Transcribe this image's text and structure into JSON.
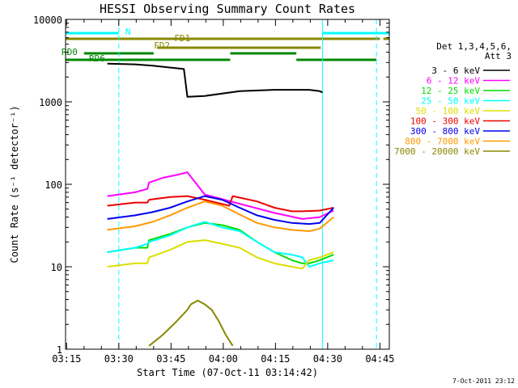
{
  "chart_data": {
    "type": "line",
    "title": "HESSI Observing Summary Count Rates",
    "xlabel": "Start Time (07-Oct-11 03:14:42)",
    "ylabel": "Count Rate (s⁻¹ detector⁻¹)",
    "x_unit": "minutes after 03:14:42",
    "xlim": [
      0,
      93
    ],
    "ylim": [
      1,
      10000
    ],
    "y_scale": "log",
    "x_tick_labels": [
      "03:15",
      "03:30",
      "03:45",
      "04:00",
      "04:15",
      "04:30",
      "04:45"
    ],
    "x_tick_values": [
      0.3,
      15.3,
      30.3,
      45.3,
      60.3,
      75.3,
      90.3
    ],
    "y_tick_labels": [
      "1",
      "10",
      "100",
      "1000",
      "10000"
    ],
    "y_tick_values": [
      1,
      10,
      100,
      1000,
      10000
    ],
    "legend": {
      "position": "right",
      "header": [
        "Det 1,3,4,5,6,",
        "Att 3"
      ],
      "entries": [
        {
          "label": "3 - 6 keV",
          "color": "#000000"
        },
        {
          "label": "6 - 12 keV",
          "color": "#ff00ff"
        },
        {
          "label": "12 - 25 keV",
          "color": "#00dd00"
        },
        {
          "label": "25 - 50 keV",
          "color": "#00ffff"
        },
        {
          "label": "50 - 100 keV",
          "color": "#dddd00"
        },
        {
          "label": "100 - 300 keV",
          "color": "#ee0000"
        },
        {
          "label": "300 - 800 keV",
          "color": "#0000ee"
        },
        {
          "label": "800 - 7000 keV",
          "color": "#ff9900"
        },
        {
          "label": "7000 - 20000 keV",
          "color": "#888800"
        }
      ]
    },
    "series": [
      {
        "color": "#000000",
        "x": [
          12,
          20,
          25,
          34,
          35,
          40,
          50,
          60,
          70,
          73,
          73.8
        ],
        "y": [
          2900,
          2850,
          2750,
          2500,
          1150,
          1180,
          1350,
          1400,
          1400,
          1350,
          1300
        ]
      },
      {
        "color": "#ff00ff",
        "x": [
          12,
          20,
          23.5,
          24,
          28,
          32,
          35,
          40,
          50,
          60,
          68,
          73,
          77
        ],
        "y": [
          72,
          80,
          88,
          105,
          120,
          130,
          140,
          75,
          58,
          45,
          38,
          40,
          48
        ]
      },
      {
        "color": "#00dd00",
        "x": [
          12,
          20,
          23.5,
          24,
          30,
          35,
          40,
          45,
          50,
          55,
          60,
          65,
          68,
          70,
          73,
          77
        ],
        "y": [
          15,
          17,
          17,
          21,
          25,
          30,
          34,
          32,
          28,
          20,
          15,
          12,
          11,
          11,
          12,
          14
        ]
      },
      {
        "color": "#00ffff",
        "x": [
          12,
          20,
          23.5,
          24,
          30,
          35,
          40,
          45,
          50,
          55,
          60,
          65,
          68,
          70,
          73,
          77
        ],
        "y": [
          15,
          17,
          19,
          20,
          24,
          30,
          35,
          30,
          27,
          20,
          15,
          14,
          13,
          10,
          11,
          12
        ]
      },
      {
        "color": "#dddd00",
        "x": [
          12,
          20,
          23.5,
          24,
          30,
          35,
          40,
          45,
          50,
          55,
          60,
          65,
          68,
          70,
          73,
          77
        ],
        "y": [
          10,
          11,
          11,
          13,
          16,
          20,
          21,
          19,
          17,
          13,
          11,
          10,
          9.5,
          12,
          13,
          15
        ]
      },
      {
        "color": "#ee0000",
        "x": [
          12,
          20,
          23.5,
          24,
          30,
          35,
          40,
          47,
          48,
          55,
          60,
          65,
          68,
          73,
          77
        ],
        "y": [
          55,
          60,
          60,
          65,
          70,
          72,
          65,
          55,
          72,
          62,
          52,
          47,
          47,
          48,
          52
        ]
      },
      {
        "color": "#0000ee",
        "x": [
          12,
          20,
          25,
          30,
          35,
          40,
          45,
          50,
          55,
          60,
          65,
          70,
          73,
          77
        ],
        "y": [
          38,
          42,
          46,
          52,
          62,
          72,
          65,
          52,
          42,
          37,
          34,
          33,
          34,
          52
        ]
      },
      {
        "color": "#ff9900",
        "x": [
          12,
          20,
          25,
          30,
          35,
          40,
          45,
          50,
          55,
          60,
          65,
          70,
          73,
          77
        ],
        "y": [
          28,
          31,
          35,
          42,
          52,
          62,
          55,
          43,
          34,
          30,
          28,
          27,
          29,
          40
        ]
      },
      {
        "color": "#888800",
        "x": [
          24,
          28,
          32,
          35,
          36,
          38,
          40,
          42,
          44,
          46,
          48
        ],
        "y": [
          1.1,
          1.5,
          2.2,
          3,
          3.5,
          3.9,
          3.5,
          3,
          2.2,
          1.5,
          1.1
        ]
      }
    ],
    "flag_bars": [
      {
        "label": "N",
        "color": "#00ffff",
        "segments": [
          [
            0,
            15.3
          ],
          [
            73.8,
            93
          ]
        ]
      },
      {
        "label": "FD1",
        "color": "#888800",
        "segments": [
          [
            0,
            90.3
          ],
          [
            91.3,
            93
          ]
        ]
      },
      {
        "label": "FD2",
        "color": "#888800",
        "segments": [
          [
            26.3,
            73.3
          ]
        ]
      },
      {
        "label": "RD0",
        "color": "#008800",
        "segments": [
          [
            5.3,
            25.3
          ],
          [
            47.3,
            66.3
          ]
        ]
      },
      {
        "label": "RD6",
        "color": "#008800",
        "segments": [
          [
            0,
            25.3
          ],
          [
            25.3,
            47.3
          ],
          [
            66.3,
            89.3
          ]
        ]
      }
    ],
    "vertical_markers": {
      "solid_cyan": [
        0,
        73.8
      ],
      "dashed_cyan": [
        15.3,
        89.3
      ]
    },
    "timestamp": "7-Oct-2011 23:12"
  }
}
